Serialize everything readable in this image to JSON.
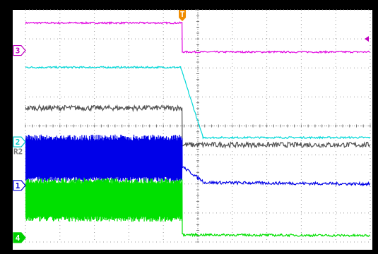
{
  "chart_data": {
    "type": "line",
    "title": "",
    "xlabel": "",
    "ylabel": "",
    "grid": true,
    "grid_divisions": {
      "x": 10,
      "y": 8
    },
    "x_range": [
      0,
      10
    ],
    "y_range": [
      -4,
      4
    ],
    "trigger": {
      "label": "T",
      "x": 4.55,
      "color": "#f08c00"
    },
    "trigger_level_color": "#c000c0",
    "channel_markers": [
      {
        "id": "3",
        "label": "3",
        "level": 2.6,
        "color": "#c000c0",
        "style": "outline"
      },
      {
        "id": "2",
        "label": "2",
        "level": -0.55,
        "color": "#00c8c8",
        "style": "outline"
      },
      {
        "id": "R2",
        "label": "R2",
        "level": -0.88,
        "color": "#7a7a7a",
        "style": "text"
      },
      {
        "id": "1",
        "label": "1",
        "level": -2.05,
        "color": "#0000d8",
        "style": "outline"
      },
      {
        "id": "4",
        "label": "4",
        "level": -3.85,
        "color": "#00d000",
        "style": "filled"
      }
    ],
    "series": [
      {
        "id": "ch3",
        "color": "#e000e0",
        "type": "step",
        "points": [
          [
            0,
            3.55
          ],
          [
            4.55,
            3.55
          ],
          [
            4.55,
            2.55
          ],
          [
            10,
            2.55
          ]
        ],
        "noise": 0.03
      },
      {
        "id": "ch2",
        "color": "#00d8d8",
        "type": "ramp",
        "points": [
          [
            0,
            2.02
          ],
          [
            4.5,
            2.02
          ],
          [
            5.15,
            -0.4
          ],
          [
            10,
            -0.4
          ]
        ],
        "noise": 0.03
      },
      {
        "id": "ref2",
        "color": "#505050",
        "type": "step",
        "points": [
          [
            0,
            0.62
          ],
          [
            4.55,
            0.62
          ],
          [
            4.55,
            -0.65
          ],
          [
            10,
            -0.65
          ]
        ],
        "noise": 0.09
      },
      {
        "id": "ch1",
        "color": "#0000e8",
        "type": "band",
        "band_end": 4.55,
        "band_min": -1.95,
        "band_max": -0.3,
        "after": [
          [
            4.55,
            -1.4
          ],
          [
            5.2,
            -1.95
          ],
          [
            10,
            -2.0
          ]
        ],
        "noise": 0.05
      },
      {
        "id": "ch4",
        "color": "#00e000",
        "type": "band",
        "band_end": 4.55,
        "band_min": -3.3,
        "band_max": -1.8,
        "after": [
          [
            4.55,
            -3.75
          ],
          [
            10,
            -3.78
          ]
        ],
        "noise": 0.04
      }
    ],
    "marker_right": {
      "level": 3.0,
      "color": "#c000c0"
    }
  }
}
